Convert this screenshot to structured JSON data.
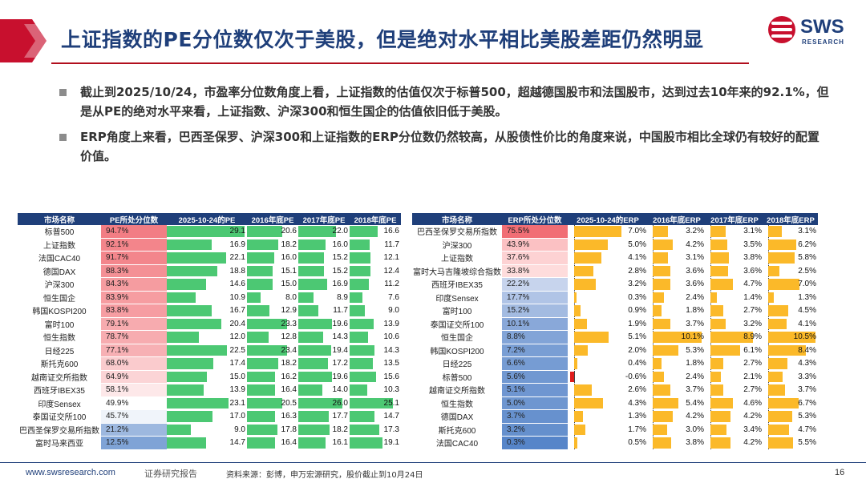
{
  "header": {
    "title": "上证指数的PE分位数仅次于美股，但是绝对水平相比美股差距仍然明显",
    "logo_text": "SWS",
    "logo_subtext": "RESEARCH"
  },
  "bullets": [
    "截止到2025/10/24，市盈率分位数角度上看，上证指数的估值仅次于标普500，超越德国股市和法国股市，达到过去10年来的92.1%，但是从PE的绝对水平来看，上证指数、沪深300和恒生国企的估值依旧低于美股。",
    "ERP角度上来看，巴西圣保罗、沪深300和上证指数的ERP分位数仍然较高，从股债性价比的角度来说，中国股市相比全球仍有较好的配置价值。"
  ],
  "colors": {
    "navy": "#1f3f7a",
    "green": "#4cc873",
    "orange": "#fbb929",
    "red": "#e01c1c",
    "accent_red": "#c8102e"
  },
  "pe_table": {
    "headers": [
      "市场名称",
      "PE所处分位数",
      "2025-10-24的PE",
      "2016年底PE",
      "2017年底PE",
      "2018年底PE"
    ],
    "rows": [
      {
        "name": "标普500",
        "pct": "94.7%",
        "pct_v": 94.7,
        "pe": [
          "29.1",
          "20.6",
          "22.0",
          "16.6"
        ]
      },
      {
        "name": "上证指数",
        "pct": "92.1%",
        "pct_v": 92.1,
        "pe": [
          "16.9",
          "18.2",
          "16.0",
          "11.7"
        ]
      },
      {
        "name": "法国CAC40",
        "pct": "91.7%",
        "pct_v": 91.7,
        "pe": [
          "22.1",
          "16.0",
          "15.2",
          "12.1"
        ]
      },
      {
        "name": "德国DAX",
        "pct": "88.3%",
        "pct_v": 88.3,
        "pe": [
          "18.8",
          "15.1",
          "15.2",
          "12.4"
        ]
      },
      {
        "name": "沪深300",
        "pct": "84.3%",
        "pct_v": 84.3,
        "pe": [
          "14.6",
          "15.0",
          "16.9",
          "11.2"
        ]
      },
      {
        "name": "恒生国企",
        "pct": "83.9%",
        "pct_v": 83.9,
        "pe": [
          "10.9",
          "8.0",
          "8.9",
          "7.6"
        ]
      },
      {
        "name": "韩国KOSPI200",
        "pct": "83.8%",
        "pct_v": 83.8,
        "pe": [
          "16.7",
          "12.9",
          "11.7",
          "9.0"
        ]
      },
      {
        "name": "富时100",
        "pct": "79.1%",
        "pct_v": 79.1,
        "pe": [
          "20.4",
          "23.3",
          "19.6",
          "13.9"
        ]
      },
      {
        "name": "恒生指数",
        "pct": "78.7%",
        "pct_v": 78.7,
        "pe": [
          "12.0",
          "12.8",
          "14.3",
          "10.6"
        ]
      },
      {
        "name": "日经225",
        "pct": "77.1%",
        "pct_v": 77.1,
        "pe": [
          "22.5",
          "23.4",
          "19.4",
          "14.3"
        ]
      },
      {
        "name": "斯托克600",
        "pct": "68.0%",
        "pct_v": 68.0,
        "pe": [
          "17.4",
          "18.2",
          "17.2",
          "13.5"
        ]
      },
      {
        "name": "越南证交所指数",
        "pct": "64.9%",
        "pct_v": 64.9,
        "pe": [
          "15.0",
          "16.2",
          "19.6",
          "15.6"
        ]
      },
      {
        "name": "西班牙IBEX35",
        "pct": "58.1%",
        "pct_v": 58.1,
        "pe": [
          "13.9",
          "16.4",
          "14.0",
          "10.3"
        ]
      },
      {
        "name": "印度Sensex",
        "pct": "49.9%",
        "pct_v": 49.9,
        "pe": [
          "23.1",
          "20.5",
          "26.0",
          "25.1"
        ]
      },
      {
        "name": "泰国证交所100",
        "pct": "45.7%",
        "pct_v": 45.7,
        "pe": [
          "17.0",
          "16.3",
          "17.7",
          "14.7"
        ]
      },
      {
        "name": "巴西圣保罗交易所指数",
        "pct": "21.2%",
        "pct_v": 21.2,
        "pe": [
          "9.0",
          "17.8",
          "18.2",
          "17.3"
        ]
      },
      {
        "name": "富时马来西亚",
        "pct": "12.5%",
        "pct_v": 12.5,
        "pe": [
          "14.7",
          "16.4",
          "16.1",
          "19.1"
        ]
      }
    ]
  },
  "erp_table": {
    "headers": [
      "市场名称",
      "ERP所处分位数",
      "2025-10-24的ERP",
      "2016年底ERP",
      "2017年底ERP",
      "2018年底ERP"
    ],
    "rows": [
      {
        "name": "巴西圣保罗交易所指数",
        "pct": "75.5%",
        "pct_v": 75.5,
        "erp": [
          "7.0%",
          "3.2%",
          "3.1%",
          "3.1%"
        ]
      },
      {
        "name": "沪深300",
        "pct": "43.9%",
        "pct_v": 43.9,
        "erp": [
          "5.0%",
          "4.2%",
          "3.5%",
          "6.2%"
        ]
      },
      {
        "name": "上证指数",
        "pct": "37.6%",
        "pct_v": 37.6,
        "erp": [
          "4.1%",
          "3.1%",
          "3.8%",
          "5.8%"
        ]
      },
      {
        "name": "富时大马吉隆坡综合指数",
        "pct": "33.8%",
        "pct_v": 33.8,
        "erp": [
          "2.8%",
          "3.6%",
          "3.6%",
          "2.5%"
        ]
      },
      {
        "name": "西班牙IBEX35",
        "pct": "22.2%",
        "pct_v": 22.2,
        "erp": [
          "3.2%",
          "3.6%",
          "4.7%",
          "7.0%"
        ]
      },
      {
        "name": "印度Sensex",
        "pct": "17.7%",
        "pct_v": 17.7,
        "erp": [
          "0.3%",
          "2.4%",
          "1.4%",
          "1.3%"
        ]
      },
      {
        "name": "富时100",
        "pct": "15.2%",
        "pct_v": 15.2,
        "erp": [
          "0.9%",
          "1.8%",
          "2.7%",
          "4.5%"
        ]
      },
      {
        "name": "泰国证交所100",
        "pct": "10.1%",
        "pct_v": 10.1,
        "erp": [
          "1.9%",
          "3.7%",
          "3.2%",
          "4.1%"
        ]
      },
      {
        "name": "恒生国企",
        "pct": "8.8%",
        "pct_v": 8.8,
        "erp": [
          "5.1%",
          "10.1%",
          "8.9%",
          "10.5%"
        ]
      },
      {
        "name": "韩国KOSPI200",
        "pct": "7.2%",
        "pct_v": 7.2,
        "erp": [
          "2.0%",
          "5.3%",
          "6.1%",
          "8.4%"
        ]
      },
      {
        "name": "日经225",
        "pct": "6.6%",
        "pct_v": 6.6,
        "erp": [
          "0.4%",
          "1.8%",
          "2.7%",
          "4.3%"
        ]
      },
      {
        "name": "标普500",
        "pct": "5.6%",
        "pct_v": 5.6,
        "erp": [
          "-0.6%",
          "2.4%",
          "2.1%",
          "3.3%"
        ]
      },
      {
        "name": "越南证交所指数",
        "pct": "5.1%",
        "pct_v": 5.1,
        "erp": [
          "2.6%",
          "3.7%",
          "2.7%",
          "3.7%"
        ]
      },
      {
        "name": "恒生指数",
        "pct": "5.0%",
        "pct_v": 5.0,
        "erp": [
          "4.3%",
          "5.4%",
          "4.6%",
          "6.7%"
        ]
      },
      {
        "name": "德国DAX",
        "pct": "3.7%",
        "pct_v": 3.7,
        "erp": [
          "1.3%",
          "4.2%",
          "4.2%",
          "5.3%"
        ]
      },
      {
        "name": "斯托克600",
        "pct": "3.2%",
        "pct_v": 3.2,
        "erp": [
          "1.7%",
          "3.0%",
          "3.4%",
          "4.7%"
        ]
      },
      {
        "name": "法国CAC40",
        "pct": "0.3%",
        "pct_v": 0.3,
        "erp": [
          "0.5%",
          "3.8%",
          "4.2%",
          "5.5%"
        ]
      }
    ]
  },
  "footer": {
    "url": "www.swsresearch.com",
    "doc_type": "证券研究报告",
    "source": "资料来源：彭博，申万宏源研究，股价截止到10月24日",
    "page": "16"
  }
}
